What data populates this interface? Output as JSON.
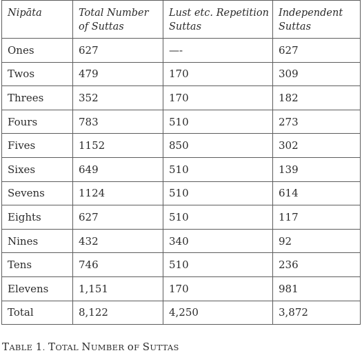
{
  "table": {
    "headers": [
      [
        "Nipāta"
      ],
      [
        "Total Number",
        "of Suttas"
      ],
      [
        "Lust etc. Repetition",
        "Suttas"
      ],
      [
        "Independent",
        "Suttas"
      ]
    ],
    "rows": [
      [
        "Ones",
        "627",
        "—-",
        "627"
      ],
      [
        "Twos",
        "479",
        "170",
        "309"
      ],
      [
        "Threes",
        "352",
        "170",
        "182"
      ],
      [
        "Fours",
        "783",
        "510",
        "273"
      ],
      [
        "Fives",
        "1152",
        "850",
        "302"
      ],
      [
        "Sixes",
        "649",
        "510",
        "139"
      ],
      [
        "Sevens",
        "1124",
        "510",
        "614"
      ],
      [
        "Eights",
        "627",
        "510",
        "117"
      ],
      [
        "Nines",
        "432",
        "340",
        "92"
      ],
      [
        "Tens",
        "746",
        "510",
        "236"
      ],
      [
        "Elevens",
        "1,151",
        "170",
        "981"
      ],
      [
        "Total",
        "8,122",
        "4,250",
        "3,872"
      ]
    ]
  },
  "caption": {
    "label": "Table 1.",
    "title": "Total Number of Suttas"
  }
}
